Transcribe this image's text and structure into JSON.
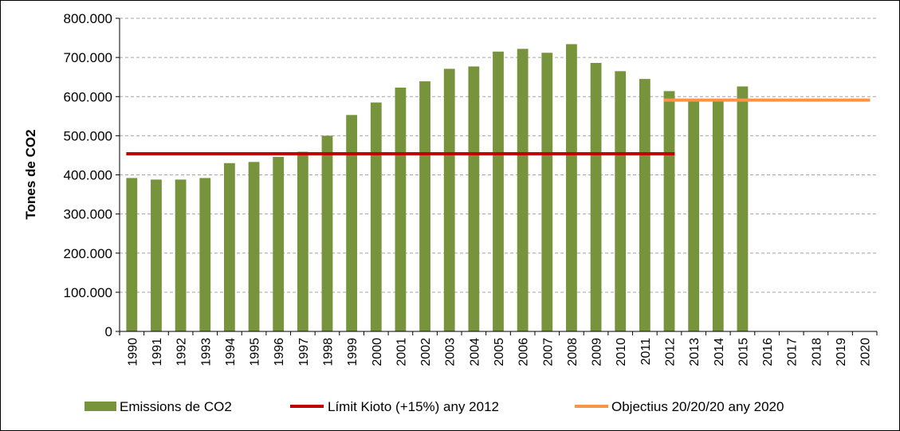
{
  "chart_data": {
    "type": "bar",
    "title": "",
    "xlabel": "",
    "ylabel": "Tones de CO2",
    "ylim": [
      0,
      800000
    ],
    "y_ticks": [
      "0",
      "100.000",
      "200.000",
      "300.000",
      "400.000",
      "500.000",
      "600.000",
      "700.000",
      "800.000"
    ],
    "y_tick_values": [
      0,
      100000,
      200000,
      300000,
      400000,
      500000,
      600000,
      700000,
      800000
    ],
    "grid": "horizontal dashed",
    "legend_position": "bottom",
    "categories": [
      "1990",
      "1991",
      "1992",
      "1993",
      "1994",
      "1995",
      "1996",
      "1997",
      "1998",
      "1999",
      "2000",
      "2001",
      "2002",
      "2003",
      "2004",
      "2005",
      "2006",
      "2007",
      "2008",
      "2009",
      "2010",
      "2011",
      "2012",
      "2013",
      "2014",
      "2015",
      "2016",
      "2017",
      "2018",
      "2019",
      "2020"
    ],
    "series": [
      {
        "name": "Emissions de CO2",
        "kind": "bar",
        "color": "#77933c",
        "values": [
          392000,
          388000,
          388000,
          392000,
          430000,
          433000,
          446000,
          459000,
          500000,
          553000,
          585000,
          623000,
          639000,
          671000,
          677000,
          715000,
          722000,
          712000,
          734000,
          686000,
          665000,
          645000,
          614000,
          590000,
          592000,
          626000,
          null,
          null,
          null,
          null,
          null
        ]
      },
      {
        "name": "Límit Kioto (+15%) any 2012",
        "kind": "line",
        "color": "#c00000",
        "x_start": "1990",
        "x_end": "2012",
        "value": 454000
      },
      {
        "name": "Objectius 20/20/20 any 2020",
        "kind": "line",
        "color": "#f79646",
        "x_start": "2012",
        "x_end": "2020",
        "value": 591000
      }
    ]
  }
}
